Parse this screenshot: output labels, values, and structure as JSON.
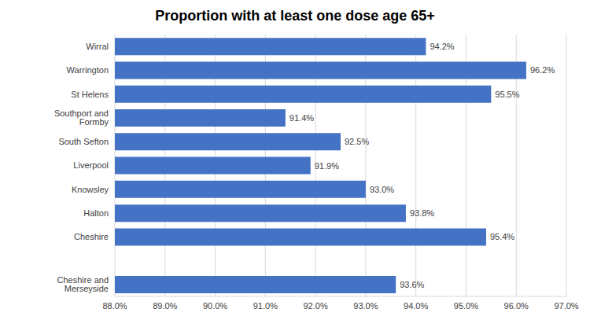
{
  "chart_data": {
    "type": "bar",
    "title": "Proportion with at least one dose age 65+",
    "orientation": "horizontal",
    "categories": [
      "Wirral",
      "Warrington",
      "St Helens",
      "Southport and Formby",
      "South Sefton",
      "Liverpool",
      "Knowsley",
      "Halton",
      "Cheshire",
      null,
      "Cheshire and Merseyside"
    ],
    "values": [
      94.2,
      96.2,
      95.5,
      91.4,
      92.5,
      91.9,
      93.0,
      93.8,
      95.4,
      null,
      93.6
    ],
    "value_labels": [
      "94.2%",
      "96.2%",
      "95.5%",
      "91.4%",
      "92.5%",
      "91.9%",
      "93.0%",
      "93.8%",
      "95.4%",
      null,
      "93.6%"
    ],
    "color": "#4472c4",
    "xlim": [
      88,
      97
    ],
    "xticks": [
      {
        "value": 88,
        "label": "88.0%"
      },
      {
        "value": 89,
        "label": "89.0%"
      },
      {
        "value": 90,
        "label": "90.0%"
      },
      {
        "value": 91,
        "label": "91.0%"
      },
      {
        "value": 92,
        "label": "92.0%"
      },
      {
        "value": 93,
        "label": "93.0%"
      },
      {
        "value": 94,
        "label": "94.0%"
      },
      {
        "value": 95,
        "label": "95.0%"
      },
      {
        "value": 96,
        "label": "96.0%"
      },
      {
        "value": 97,
        "label": "97.0%"
      }
    ],
    "grid": true,
    "data_labels": true
  }
}
